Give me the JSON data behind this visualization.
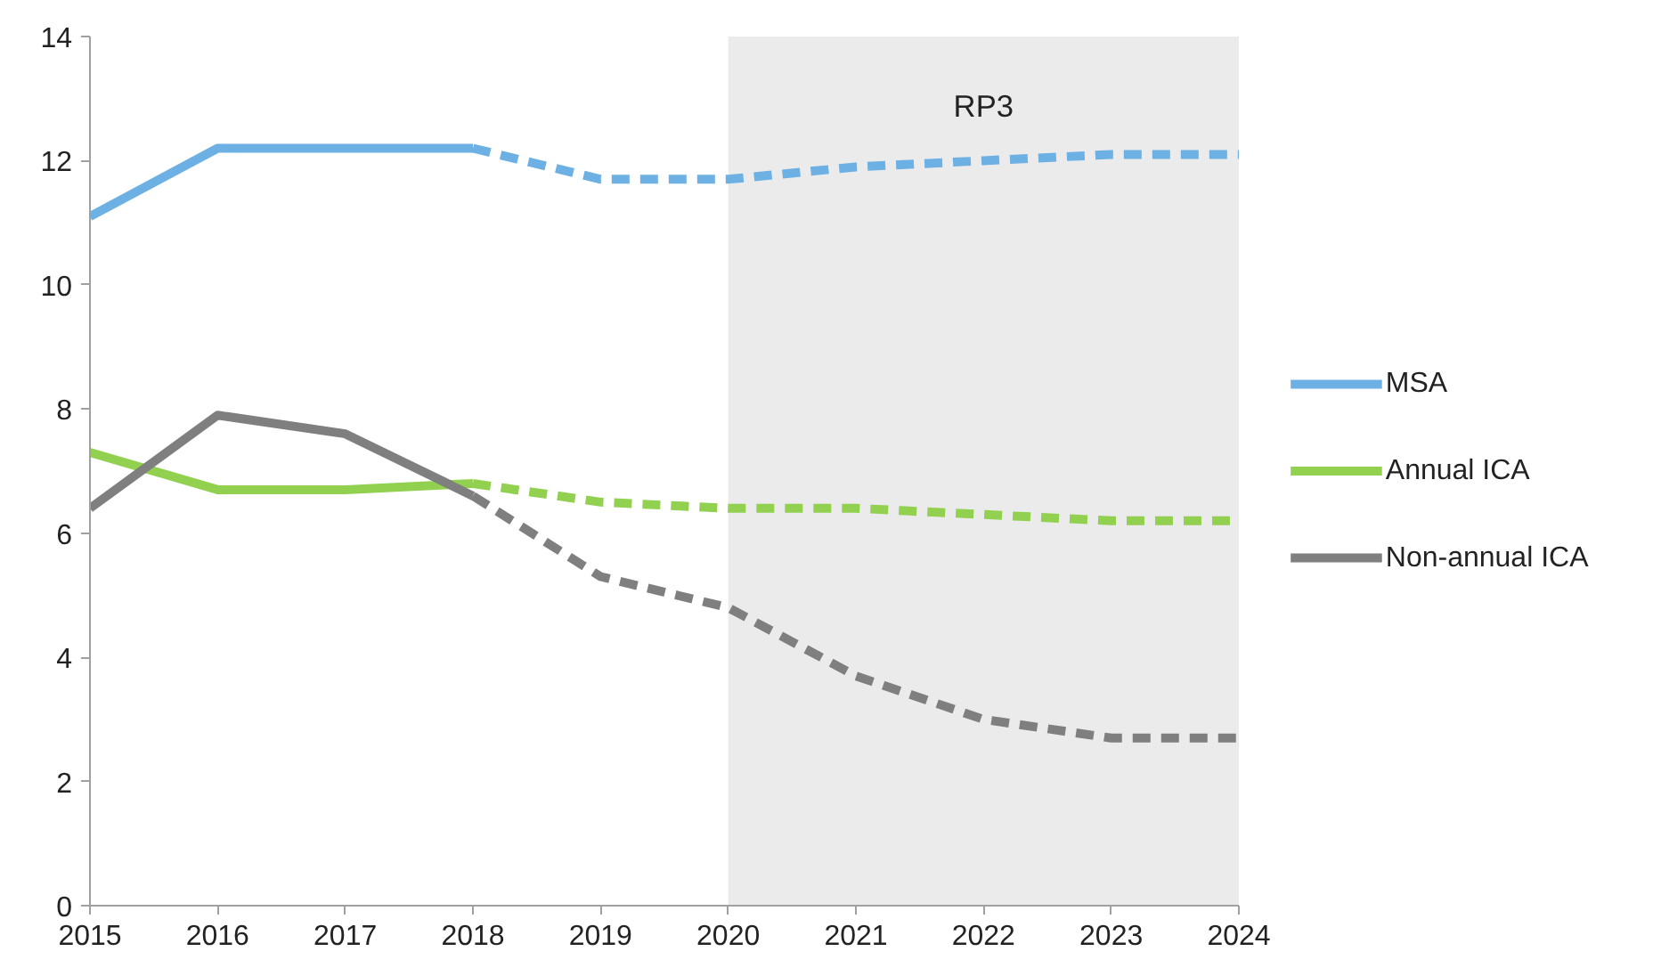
{
  "chart_data": {
    "type": "line",
    "xlim": [
      2015,
      2024
    ],
    "ylim": [
      0,
      14
    ],
    "xticks": [
      2015,
      2016,
      2017,
      2018,
      2019,
      2020,
      2021,
      2022,
      2023,
      2024
    ],
    "yticks": [
      0,
      2,
      4,
      6,
      8,
      10,
      12,
      14
    ],
    "grid": false,
    "legend": "right",
    "marker": "none",
    "bands": [
      {
        "axis": "x",
        "from": 2020,
        "to": 2024,
        "label": "RP3",
        "color": "#ebebeb"
      }
    ],
    "series": [
      {
        "name": "MSA",
        "color": "#6cb0e4",
        "line_style": "solid",
        "x": [
          2015,
          2016,
          2017,
          2018
        ],
        "values": [
          11.1,
          12.2,
          12.2,
          12.2
        ]
      },
      {
        "color": "#6cb0e4",
        "line_style": "dashed",
        "x": [
          2018,
          2019,
          2020,
          2021,
          2022,
          2023,
          2024
        ],
        "values": [
          12.2,
          11.7,
          11.7,
          11.9,
          12.0,
          12.1,
          12.1
        ]
      },
      {
        "name": "Annual ICA",
        "color": "#92d050",
        "line_style": "solid",
        "x": [
          2015,
          2016,
          2017,
          2018
        ],
        "values": [
          7.3,
          6.7,
          6.7,
          6.8
        ]
      },
      {
        "color": "#92d050",
        "line_style": "dashed",
        "x": [
          2018,
          2019,
          2020,
          2021,
          2022,
          2023,
          2024
        ],
        "values": [
          6.8,
          6.5,
          6.4,
          6.4,
          6.3,
          6.2,
          6.2
        ]
      },
      {
        "name": "Non-annual ICA",
        "color": "#7f7f7f",
        "line_style": "solid",
        "x": [
          2015,
          2016,
          2017,
          2018
        ],
        "values": [
          6.4,
          7.9,
          7.6,
          6.6
        ]
      },
      {
        "color": "#7f7f7f",
        "line_style": "dashed",
        "x": [
          2018,
          2019,
          2020,
          2021,
          2022,
          2023,
          2024
        ],
        "values": [
          6.6,
          5.3,
          4.8,
          3.7,
          3.0,
          2.7,
          2.7
        ]
      }
    ]
  }
}
